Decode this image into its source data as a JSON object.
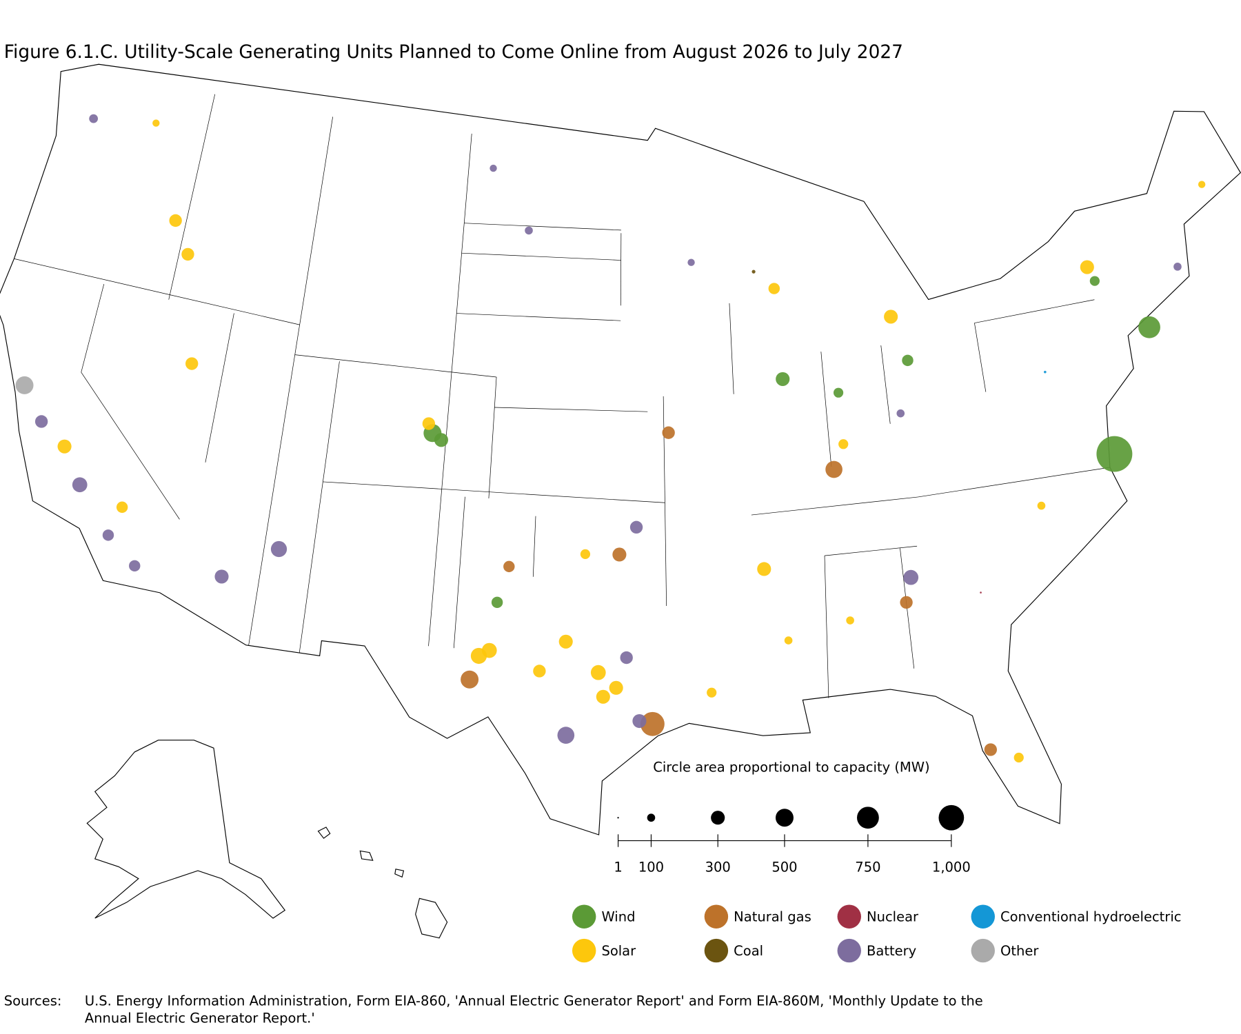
{
  "map": {
    "title": "Figure 6.1.C. Utility-Scale Generating Units Planned to Come Online from August 2026 to July 2027",
    "size_legend": {
      "title": "Circle area proportional to capacity (MW)",
      "ticks": [
        1,
        100,
        300,
        500,
        750,
        {
          "value": 1000,
          "label": "1,000"
        }
      ]
    },
    "types": [
      {
        "name": "Wind",
        "color": "#5b9a36"
      },
      {
        "name": "Solar",
        "color": "#fdc70c"
      },
      {
        "name": "Natural gas",
        "color": "#bd722a"
      },
      {
        "name": "Coal",
        "color": "#6b5410"
      },
      {
        "name": "Nuclear",
        "color": "#a03044"
      },
      {
        "name": "Battery",
        "color": "#7d6d9e"
      },
      {
        "name": "Conventional hydroelectric",
        "color": "#1497d6"
      },
      {
        "name": "Other",
        "color": "#aaaaaa"
      }
    ],
    "points": [
      {
        "type": "Wind",
        "lon": -75.6,
        "lat": 36.9,
        "mw": 2000
      },
      {
        "type": "Wind",
        "lon": -72.9,
        "lat": 40.7,
        "mw": 750
      },
      {
        "type": "Natural gas",
        "lon": -95.2,
        "lat": 29.7,
        "mw": 900
      },
      {
        "type": "Natural gas",
        "lon": -102.3,
        "lat": 31.0,
        "mw": 500
      },
      {
        "type": "Natural gas",
        "lon": -87.4,
        "lat": 37.8,
        "mw": 450
      },
      {
        "type": "Other",
        "lon": -122.2,
        "lat": 38.1,
        "mw": 500
      },
      {
        "type": "Wind",
        "lon": -104.6,
        "lat": 39.0,
        "mw": 500
      },
      {
        "type": "Wind",
        "lon": -104.2,
        "lat": 38.8,
        "mw": 300
      },
      {
        "type": "Battery",
        "lon": -112.5,
        "lat": 33.4,
        "mw": 300
      },
      {
        "type": "Battery",
        "lon": -110.4,
        "lat": 34.6,
        "mw": 400
      },
      {
        "type": "Solar",
        "lon": -102.0,
        "lat": 31.8,
        "mw": 400
      },
      {
        "type": "Solar",
        "lon": -101.6,
        "lat": 32.0,
        "mw": 350
      },
      {
        "type": "Solar",
        "lon": -98.6,
        "lat": 32.4,
        "mw": 300
      },
      {
        "type": "Solar",
        "lon": -97.3,
        "lat": 31.4,
        "mw": 350
      },
      {
        "type": "Solar",
        "lon": -97.1,
        "lat": 30.6,
        "mw": 300
      },
      {
        "type": "Solar",
        "lon": -96.6,
        "lat": 30.9,
        "mw": 300
      },
      {
        "type": "Solar",
        "lon": -99.6,
        "lat": 31.4,
        "mw": 250
      },
      {
        "type": "Battery",
        "lon": -98.5,
        "lat": 29.3,
        "mw": 450
      },
      {
        "type": "Battery",
        "lon": -95.7,
        "lat": 29.8,
        "mw": 300
      },
      {
        "type": "Battery",
        "lon": -96.2,
        "lat": 31.9,
        "mw": 250
      },
      {
        "type": "Wind",
        "lon": -101.4,
        "lat": 33.6,
        "mw": 200
      },
      {
        "type": "Natural gas",
        "lon": -101.0,
        "lat": 34.8,
        "mw": 200
      },
      {
        "type": "Battery",
        "lon": -84.7,
        "lat": 34.0,
        "mw": 350
      },
      {
        "type": "Natural gas",
        "lon": -85.0,
        "lat": 33.2,
        "mw": 250
      },
      {
        "type": "Solar",
        "lon": -115.4,
        "lat": 40.1,
        "mw": 250
      },
      {
        "type": "Solar",
        "lon": -116.6,
        "lat": 43.6,
        "mw": 250
      },
      {
        "type": "Solar",
        "lon": -104.8,
        "lat": 39.3,
        "mw": 250
      },
      {
        "type": "Natural gas",
        "lon": -94.4,
        "lat": 39.3,
        "mw": 250
      },
      {
        "type": "Solar",
        "lon": -90.6,
        "lat": 34.7,
        "mw": 300
      },
      {
        "type": "Wind",
        "lon": -89.3,
        "lat": 40.9,
        "mw": 300
      },
      {
        "type": "Wind",
        "lon": -86.9,
        "lat": 40.3,
        "mw": 150
      },
      {
        "type": "Wind",
        "lon": -83.7,
        "lat": 41.1,
        "mw": 200
      },
      {
        "type": "Solar",
        "lon": -75.0,
        "lat": 43.1,
        "mw": 300
      },
      {
        "type": "Wind",
        "lon": -74.8,
        "lat": 42.6,
        "mw": 150
      },
      {
        "type": "Solar",
        "lon": -68.9,
        "lat": 44.8,
        "mw": 80
      },
      {
        "type": "Battery",
        "lon": -122.5,
        "lat": 47.2,
        "mw": 120
      },
      {
        "type": "Solar",
        "lon": -119.5,
        "lat": 47.6,
        "mw": 80
      },
      {
        "type": "Solar",
        "lon": -117.5,
        "lat": 44.6,
        "mw": 250
      },
      {
        "type": "Battery",
        "lon": -102.8,
        "lat": 47.9,
        "mw": 80
      },
      {
        "type": "Battery",
        "lon": -100.9,
        "lat": 45.9,
        "mw": 100
      },
      {
        "type": "Natural gas",
        "lon": -82.5,
        "lat": 28.0,
        "mw": 250
      },
      {
        "type": "Solar",
        "lon": -81.5,
        "lat": 27.6,
        "mw": 150
      },
      {
        "type": "Battery",
        "lon": -121.1,
        "lat": 37.1,
        "mw": 250
      },
      {
        "type": "Battery",
        "lon": -118.9,
        "lat": 35.4,
        "mw": 350
      },
      {
        "type": "Battery",
        "lon": -117.3,
        "lat": 34.0,
        "mw": 200
      },
      {
        "type": "Battery",
        "lon": -116.0,
        "lat": 33.2,
        "mw": 200
      },
      {
        "type": "Solar",
        "lon": -119.9,
        "lat": 36.5,
        "mw": 300
      },
      {
        "type": "Solar",
        "lon": -117.0,
        "lat": 35.0,
        "mw": 200
      },
      {
        "type": "Solar",
        "lon": -92.9,
        "lat": 30.7,
        "mw": 150
      },
      {
        "type": "Solar",
        "lon": -89.8,
        "lat": 32.3,
        "mw": 100
      },
      {
        "type": "Solar",
        "lon": -87.3,
        "lat": 32.8,
        "mw": 100
      },
      {
        "type": "Solar",
        "lon": -84.2,
        "lat": 42.6,
        "mw": 300
      },
      {
        "type": "Solar",
        "lon": -89.4,
        "lat": 43.9,
        "mw": 200
      },
      {
        "type": "Battery",
        "lon": -93.2,
        "lat": 44.9,
        "mw": 80
      },
      {
        "type": "Battery",
        "lon": -95.8,
        "lat": 36.2,
        "mw": 250
      },
      {
        "type": "Natural gas",
        "lon": -96.5,
        "lat": 35.3,
        "mw": 300
      },
      {
        "type": "Solar",
        "lon": -97.9,
        "lat": 35.3,
        "mw": 150
      },
      {
        "type": "Battery",
        "lon": -71.0,
        "lat": 42.4,
        "mw": 100
      },
      {
        "type": "Solar",
        "lon": -79.0,
        "lat": 35.7,
        "mw": 100
      },
      {
        "type": "Battery",
        "lon": -84.3,
        "lat": 39.4,
        "mw": 100
      },
      {
        "type": "Solar",
        "lon": -86.9,
        "lat": 38.6,
        "mw": 150
      },
      {
        "type": "Conventional hydroelectric",
        "lon": -77.8,
        "lat": 40.0,
        "mw": 10
      },
      {
        "type": "Coal",
        "lon": -90.3,
        "lat": 44.5,
        "mw": 20
      },
      {
        "type": "Nuclear",
        "lon": -82.0,
        "lat": 33.2,
        "mw": 5
      }
    ]
  },
  "sources": {
    "label": "Sources:",
    "text_line1": "U.S. Energy Information Administration, Form EIA-860, 'Annual Electric Generator Report' and Form EIA-860M, 'Monthly Update to the",
    "text_line2": "Annual Electric Generator Report.'"
  }
}
